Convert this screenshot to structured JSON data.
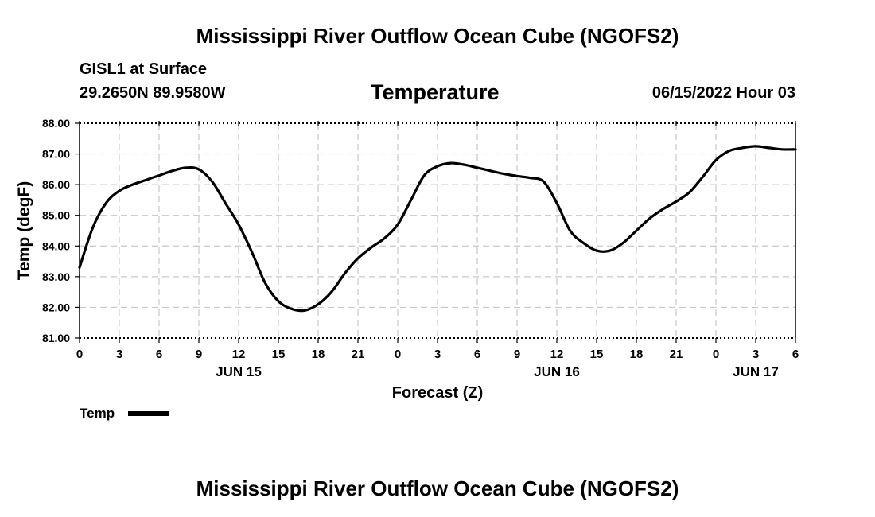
{
  "page": {
    "title": "Mississippi River Outflow Ocean Cube (NGOFS2)",
    "station": "GISL1 at Surface",
    "coords": "29.2650N  89.9580W",
    "variable": "Temperature",
    "datetime": "06/15/2022 Hour 03",
    "footer_title": "Mississippi River Outflow Ocean Cube (NGOFS2)"
  },
  "colors": {
    "line": "#000000",
    "grid": "#c8c8c8"
  },
  "chart_data": {
    "type": "line",
    "title": "Temperature",
    "xlabel": "Forecast (Z)",
    "ylabel": "Temp (degF)",
    "xlim": [
      0,
      54
    ],
    "ylim": [
      81,
      88
    ],
    "y_ticks": [
      "81.00",
      "82.00",
      "83.00",
      "84.00",
      "85.00",
      "86.00",
      "87.00",
      "88.00"
    ],
    "x_tick_labels": [
      "0",
      "3",
      "6",
      "9",
      "12",
      "15",
      "18",
      "21",
      "0",
      "3",
      "6",
      "9",
      "12",
      "15",
      "18",
      "21",
      "0",
      "3",
      "6"
    ],
    "day_labels": [
      {
        "label": "JUN 15",
        "hour": 12
      },
      {
        "label": "JUN 16",
        "hour": 36
      },
      {
        "label": "JUN 17",
        "hour": 51
      }
    ],
    "grid": true,
    "legend": {
      "position": "bottom-left",
      "label": "Temp"
    },
    "series": [
      {
        "name": "Temp",
        "x": [
          0,
          1,
          2,
          3,
          4,
          5,
          6,
          7,
          8,
          9,
          10,
          11,
          12,
          13,
          14,
          15,
          16,
          17,
          18,
          19,
          20,
          21,
          22,
          23,
          24,
          25,
          26,
          27,
          28,
          29,
          30,
          31,
          32,
          33,
          34,
          35,
          36,
          37,
          38,
          39,
          40,
          41,
          42,
          43,
          44,
          45,
          46,
          47,
          48,
          49,
          50,
          51,
          52,
          53,
          54
        ],
        "values": [
          83.3,
          84.6,
          85.4,
          85.8,
          86.0,
          86.15,
          86.3,
          86.45,
          86.55,
          86.5,
          86.1,
          85.4,
          84.7,
          83.8,
          82.8,
          82.2,
          81.95,
          81.9,
          82.1,
          82.5,
          83.1,
          83.6,
          83.95,
          84.25,
          84.7,
          85.5,
          86.3,
          86.6,
          86.7,
          86.65,
          86.55,
          86.45,
          86.35,
          86.28,
          86.22,
          86.1,
          85.4,
          84.5,
          84.1,
          83.85,
          83.85,
          84.1,
          84.5,
          84.9,
          85.2,
          85.45,
          85.75,
          86.25,
          86.8,
          87.1,
          87.2,
          87.25,
          87.2,
          87.15,
          87.15
        ]
      }
    ]
  }
}
